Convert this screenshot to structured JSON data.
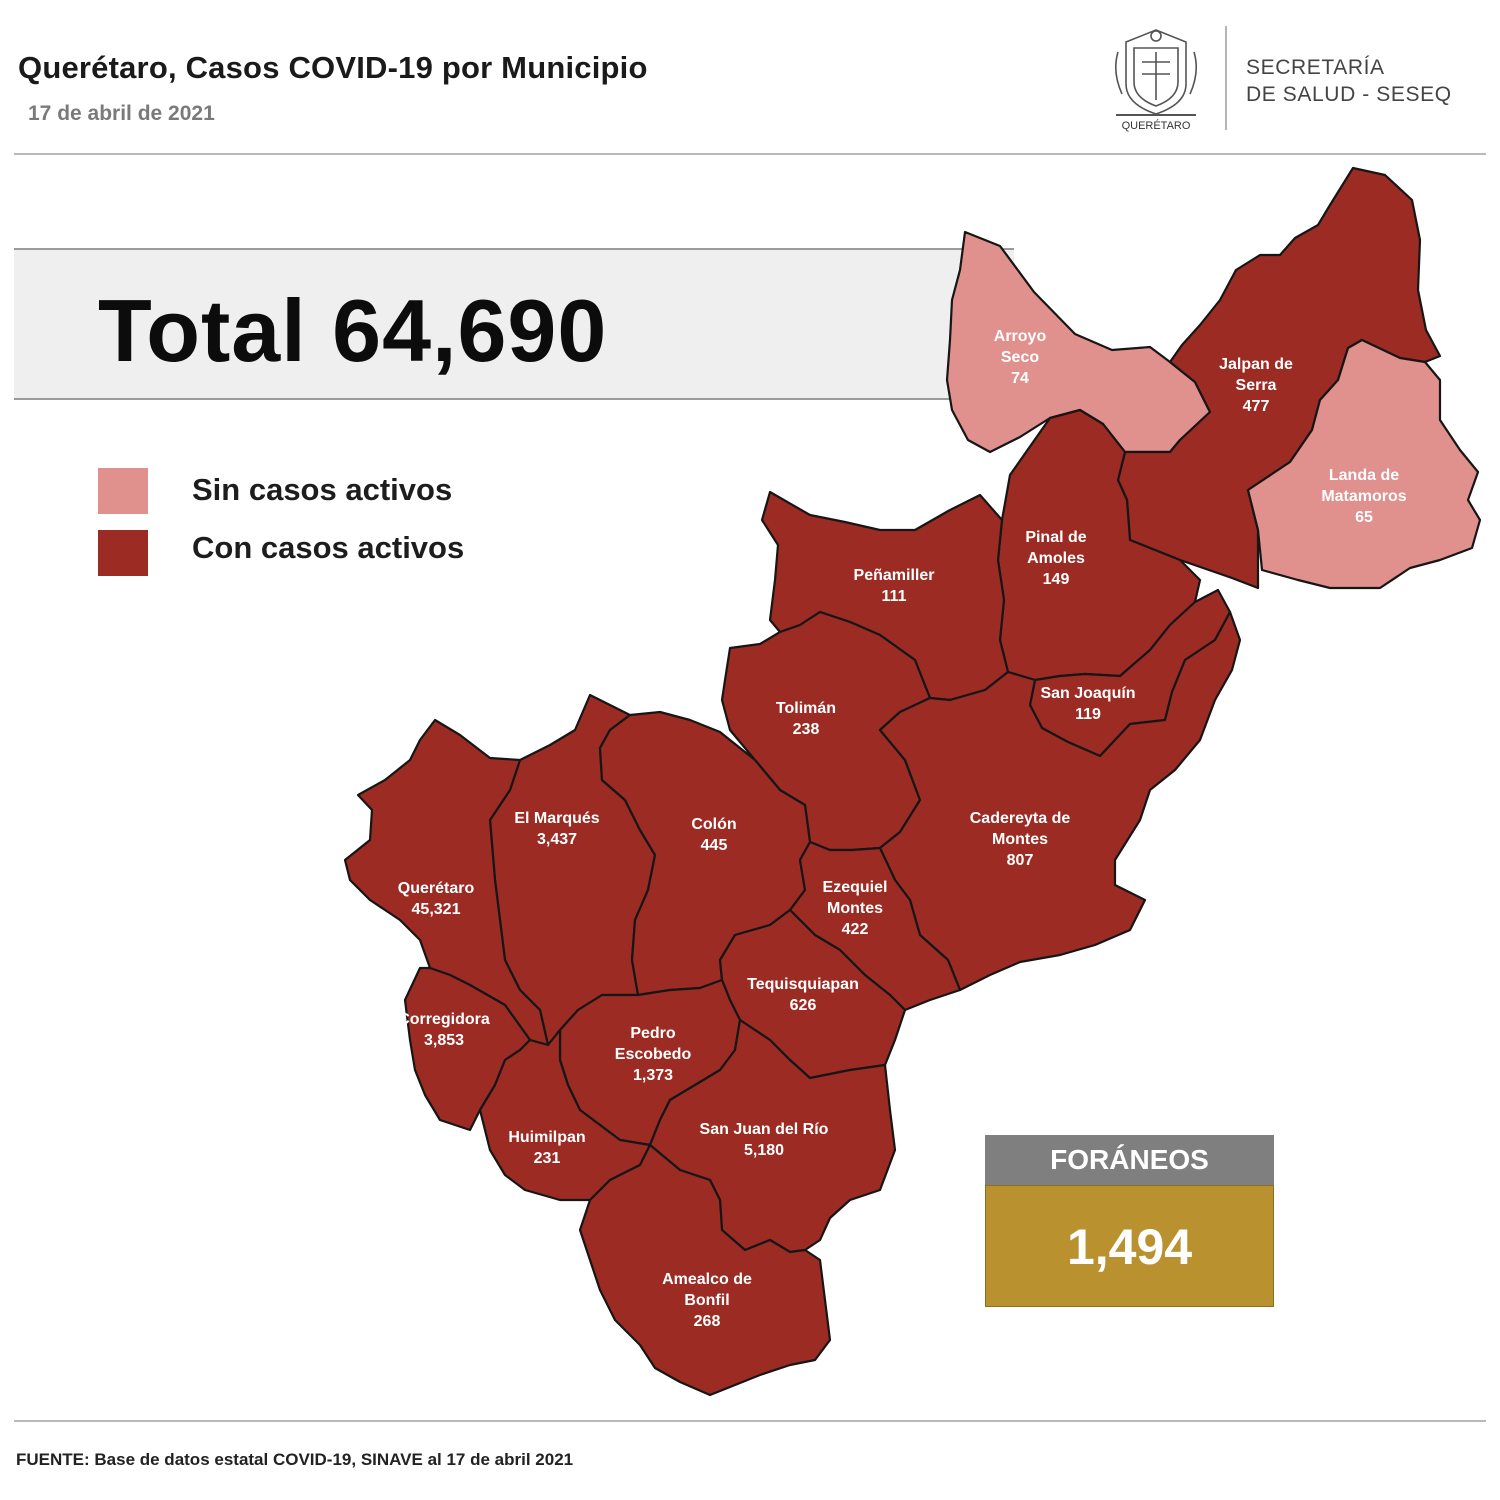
{
  "header": {
    "title": "Querétaro, Casos COVID-19 por Municipio",
    "date": "17 de abril de 2021",
    "logo_text": "QUERÉTARO",
    "org_line1": "SECRETARÍA",
    "org_line2": "DE SALUD - SESEQ"
  },
  "total": {
    "label": "Total 64,690"
  },
  "legend": [
    {
      "label": "Sin casos activos",
      "color": "#e0908d"
    },
    {
      "label": "Con casos activos",
      "color": "#9c2b24"
    }
  ],
  "municipios": [
    {
      "lines": [
        "Arroyo",
        "Seco",
        "74"
      ],
      "status": "sin"
    },
    {
      "lines": [
        "Jalpan de",
        "Serra",
        "477"
      ],
      "status": "con"
    },
    {
      "lines": [
        "Landa de",
        "Matamoros",
        "65"
      ],
      "status": "sin"
    },
    {
      "lines": [
        "Pinal de",
        "Amoles",
        "149"
      ],
      "status": "con"
    },
    {
      "lines": [
        "Peñamiller",
        "111"
      ],
      "status": "con"
    },
    {
      "lines": [
        "San Joaquín",
        "119"
      ],
      "status": "con"
    },
    {
      "lines": [
        "Tolimán",
        "238"
      ],
      "status": "con"
    },
    {
      "lines": [
        "Cadereyta de",
        "Montes",
        "807"
      ],
      "status": "con"
    },
    {
      "lines": [
        "El  Marqués",
        "3,437"
      ],
      "status": "con"
    },
    {
      "lines": [
        "Colón",
        "445"
      ],
      "status": "con"
    },
    {
      "lines": [
        "Querétaro",
        "45,321"
      ],
      "status": "con"
    },
    {
      "lines": [
        "Ezequiel",
        "Montes",
        "422"
      ],
      "status": "con"
    },
    {
      "lines": [
        "Tequisquiapan",
        "626"
      ],
      "status": "con"
    },
    {
      "lines": [
        "Corregidora",
        "3,853"
      ],
      "status": "con"
    },
    {
      "lines": [
        "Pedro",
        "Escobedo",
        "1,373"
      ],
      "status": "con"
    },
    {
      "lines": [
        "Huimilpan",
        "231"
      ],
      "status": "con"
    },
    {
      "lines": [
        "San Juan del Río",
        "5,180"
      ],
      "status": "con"
    },
    {
      "lines": [
        "Amealco de",
        "Bonfil",
        "268"
      ],
      "status": "con"
    }
  ],
  "foraneos": {
    "label": "FORÁNEOS",
    "value": "1,494"
  },
  "source": "FUENTE: Base de datos estatal COVID-19, SINAVE al 17 de abril 2021"
}
